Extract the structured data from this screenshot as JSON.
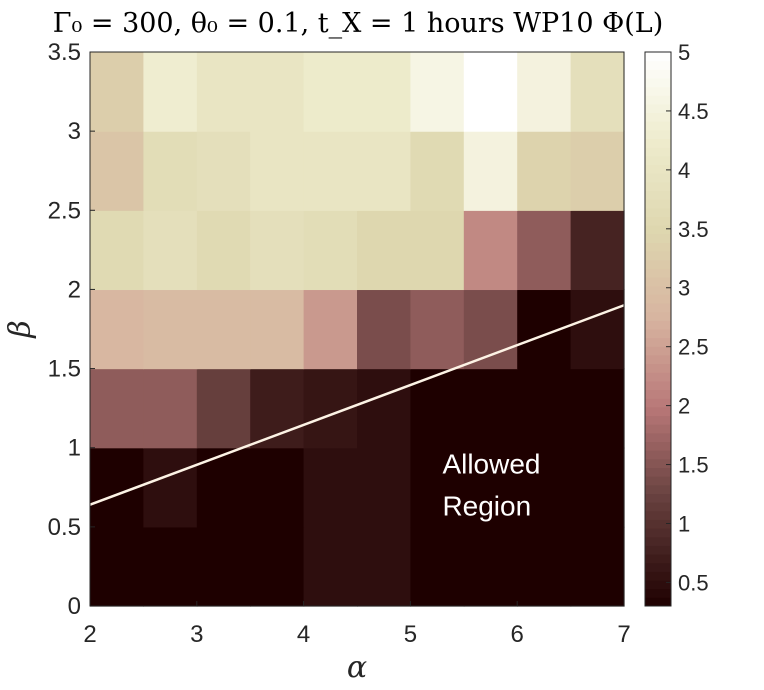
{
  "chart_data": {
    "type": "heatmap",
    "title": "Γ₀ = 300, θ₀ = 0.1, t_X = 1 hours WP10 Φ(L)",
    "xlabel": "α",
    "ylabel": "β",
    "xlim": [
      2,
      7
    ],
    "ylim": [
      0,
      3.5
    ],
    "x_ticks": [
      "2",
      "3",
      "4",
      "5",
      "6",
      "7"
    ],
    "y_ticks": [
      "0",
      "0.5",
      "1",
      "1.5",
      "2",
      "2.5",
      "3",
      "3.5"
    ],
    "x_centers": [
      2.25,
      2.75,
      3.25,
      3.75,
      4.25,
      4.75,
      5.25,
      5.75,
      6.25,
      6.75
    ],
    "y_centers": [
      0.25,
      0.75,
      1.25,
      1.75,
      2.25,
      2.75,
      3.25
    ],
    "values": [
      [
        0.3,
        0.3,
        0.3,
        0.3,
        0.5,
        0.5,
        0.3,
        0.3,
        0.3,
        0.3
      ],
      [
        0.3,
        0.5,
        0.3,
        0.3,
        0.5,
        0.5,
        0.3,
        0.3,
        0.3,
        0.3
      ],
      [
        1.6,
        1.6,
        1.2,
        0.7,
        0.6,
        0.5,
        0.3,
        0.3,
        0.3,
        0.3
      ],
      [
        2.8,
        2.9,
        2.9,
        2.9,
        2.4,
        1.4,
        1.6,
        1.4,
        0.3,
        0.5
      ],
      [
        3.6,
        3.8,
        3.6,
        3.8,
        3.7,
        3.5,
        3.5,
        2.2,
        1.6,
        0.8
      ],
      [
        3.1,
        3.7,
        3.8,
        4.0,
        4.0,
        4.0,
        3.6,
        4.5,
        3.4,
        3.3
      ],
      [
        3.3,
        4.3,
        4.0,
        4.0,
        4.2,
        4.2,
        4.6,
        5.0,
        4.5,
        3.8
      ]
    ],
    "colorbar": {
      "min": 0.3,
      "max": 5,
      "ticks": [
        "0.5",
        "1",
        "1.5",
        "2",
        "2.5",
        "3",
        "3.5",
        "4",
        "4.5",
        "5"
      ]
    },
    "line": {
      "x": [
        2,
        7
      ],
      "y": [
        0.64,
        1.9
      ],
      "color": "#fdf3e5"
    },
    "annotation": {
      "lines": [
        "Allowed",
        "Region"
      ],
      "x": 5.3,
      "y": 0.9
    }
  }
}
